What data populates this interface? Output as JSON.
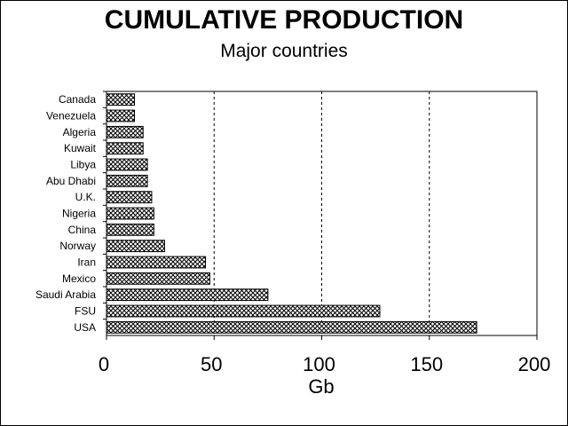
{
  "chart_data": {
    "type": "bar",
    "orientation": "horizontal",
    "title": "CUMULATIVE PRODUCTION",
    "subtitle": "Major countries",
    "xlabel": "Gb",
    "ylabel": "",
    "xlim": [
      0,
      200
    ],
    "xticks": [
      "0",
      "50",
      "100",
      "150",
      "200"
    ],
    "categories": [
      "Canada",
      "Venezuela",
      "Algeria",
      "Kuwait",
      "Libya",
      "Abu Dhabi",
      "U.K.",
      "Nigeria",
      "China",
      "Norway",
      "Iran",
      "Mexico",
      "Saudi Arabia",
      "FSU",
      "USA"
    ],
    "values": [
      13,
      13,
      17,
      17,
      19,
      19,
      21,
      22,
      22,
      27,
      46,
      48,
      75,
      127,
      172
    ],
    "grid": "vertical dashed lines",
    "bar_fill": "crosshatch",
    "colors": {
      "bar_fill": "#ffffff",
      "bar_pattern": "#000000",
      "background": "#ffffff"
    }
  }
}
